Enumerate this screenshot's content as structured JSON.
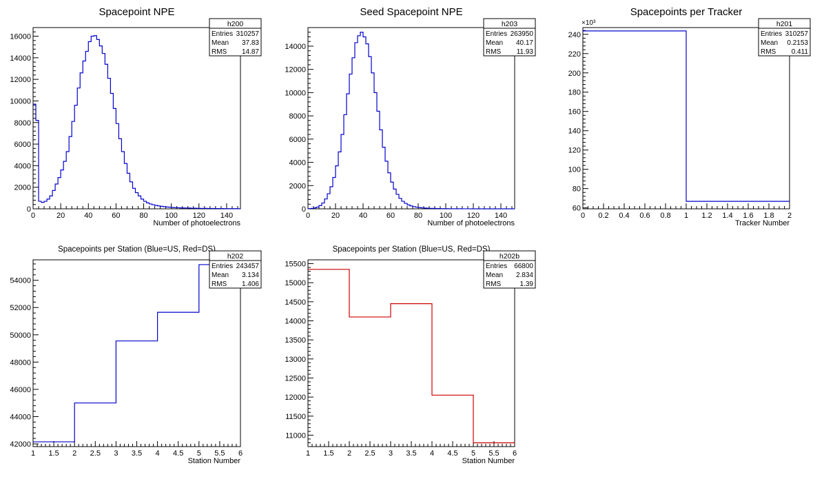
{
  "chart_data": [
    {
      "id": "h200",
      "type": "histogram",
      "title": "Spacepoint NPE",
      "xlabel": "Number of photoelectrons",
      "ylabel": "",
      "xlim": [
        0,
        150
      ],
      "ylim": [
        0,
        16800
      ],
      "x_ticks": [
        0,
        20,
        40,
        60,
        80,
        100,
        120,
        140
      ],
      "y_ticks": [
        0,
        2000,
        4000,
        6000,
        8000,
        10000,
        12000,
        14000,
        16000
      ],
      "exponent_label": "",
      "line_color": "#0000cc",
      "stats": {
        "name": "h200",
        "rows": [
          {
            "label": "Entries",
            "value": "310257"
          },
          {
            "label": "Mean",
            "value": "37.83"
          },
          {
            "label": "RMS",
            "value": "14.87"
          }
        ]
      },
      "bin_width": 2,
      "values": [
        9700,
        8200,
        700,
        600,
        700,
        900,
        1200,
        1700,
        2300,
        2900,
        3600,
        4400,
        5300,
        6700,
        8100,
        9600,
        11200,
        12600,
        13700,
        14600,
        15500,
        16000,
        16050,
        15700,
        15100,
        14400,
        13400,
        12100,
        10700,
        9300,
        7900,
        6500,
        5300,
        4200,
        3300,
        2500,
        1900,
        1500,
        1200,
        900,
        700,
        550,
        450,
        380,
        320,
        270,
        230,
        200,
        170,
        150,
        130,
        110,
        100,
        90,
        80,
        75,
        70,
        60,
        55,
        50,
        45,
        40,
        38,
        35,
        32,
        30,
        28,
        25,
        22,
        20,
        18,
        16,
        15,
        14,
        12
      ]
    },
    {
      "id": "h203",
      "type": "histogram",
      "title": "Seed Spacepoint NPE",
      "xlabel": "Number of photoelectrons",
      "ylabel": "",
      "xlim": [
        0,
        150
      ],
      "ylim": [
        0,
        15600
      ],
      "x_ticks": [
        0,
        20,
        40,
        60,
        80,
        100,
        120,
        140
      ],
      "y_ticks": [
        0,
        2000,
        4000,
        6000,
        8000,
        10000,
        12000,
        14000
      ],
      "exponent_label": "",
      "line_color": "#0000cc",
      "stats": {
        "name": "h203",
        "rows": [
          {
            "label": "Entries",
            "value": "263950"
          },
          {
            "label": "Mean",
            "value": "40.17"
          },
          {
            "label": "RMS",
            "value": "11.93"
          }
        ]
      },
      "bin_width": 2,
      "values": [
        20,
        40,
        80,
        150,
        280,
        500,
        850,
        1300,
        1900,
        2700,
        3700,
        4900,
        6400,
        8100,
        9900,
        11600,
        13000,
        14300,
        14900,
        15200,
        14800,
        14200,
        13100,
        11700,
        10000,
        8400,
        6800,
        5300,
        4100,
        3100,
        2300,
        1700,
        1250,
        900,
        650,
        470,
        340,
        250,
        190,
        145,
        110,
        85,
        65,
        50,
        40,
        35,
        30,
        25,
        20,
        18,
        15,
        12,
        10,
        8,
        7,
        6,
        5,
        4,
        3,
        2,
        2,
        2,
        1,
        1,
        1,
        1,
        1,
        1,
        1,
        1,
        1,
        1,
        1,
        1,
        1
      ]
    },
    {
      "id": "h201",
      "type": "histogram",
      "title": "Spacepoints per Tracker",
      "xlabel": "Tracker Number",
      "ylabel": "",
      "xlim": [
        0,
        2
      ],
      "ylim": [
        59,
        247
      ],
      "x_ticks": [
        0,
        0.2,
        0.4,
        0.6,
        0.8,
        1,
        1.2,
        1.4,
        1.6,
        1.8,
        2
      ],
      "y_ticks": [
        60,
        80,
        100,
        120,
        140,
        160,
        180,
        200,
        220,
        240
      ],
      "exponent_label": "×10³",
      "line_color": "#0000cc",
      "stats": {
        "name": "h201",
        "rows": [
          {
            "label": "Entries",
            "value": "310257"
          },
          {
            "label": "Mean",
            "value": "0.2153"
          },
          {
            "label": "RMS",
            "value": "0.411"
          }
        ]
      },
      "bin_width": 1,
      "values": [
        243.5,
        66.8
      ]
    },
    {
      "id": "h202",
      "type": "histogram",
      "title": "Spacepoints per Station (Blue=US, Red=DS)",
      "xlabel": "Station Number",
      "ylabel": "",
      "xlim": [
        1,
        6
      ],
      "ylim": [
        41800,
        55500
      ],
      "x_ticks": [
        1,
        1.5,
        2,
        2.5,
        3,
        3.5,
        4,
        4.5,
        5,
        5.5,
        6
      ],
      "y_ticks": [
        42000,
        44000,
        46000,
        48000,
        50000,
        52000,
        54000
      ],
      "exponent_label": "",
      "line_color": "#0000cc",
      "stats": {
        "name": "h202",
        "rows": [
          {
            "label": "Entries",
            "value": "243457"
          },
          {
            "label": "Mean",
            "value": "3.134"
          },
          {
            "label": "RMS",
            "value": "1.406"
          }
        ]
      },
      "bin_width": 1,
      "values": [
        42150,
        45000,
        49550,
        51650,
        55150
      ]
    },
    {
      "id": "h202b",
      "type": "histogram",
      "title": "Spacepoints per Station (Blue=US, Red=DS)",
      "xlabel": "Station Number",
      "ylabel": "",
      "xlim": [
        1,
        6
      ],
      "ylim": [
        10700,
        15600
      ],
      "x_ticks": [
        1,
        1.5,
        2,
        2.5,
        3,
        3.5,
        4,
        4.5,
        5,
        5.5,
        6
      ],
      "y_ticks": [
        11000,
        11500,
        12000,
        12500,
        13000,
        13500,
        14000,
        14500,
        15000,
        15500
      ],
      "exponent_label": "",
      "line_color": "#cc0000",
      "stats": {
        "name": "h202b",
        "rows": [
          {
            "label": "Entries",
            "value": "66800"
          },
          {
            "label": "Mean",
            "value": "2.834"
          },
          {
            "label": "RMS",
            "value": "1.39"
          }
        ]
      },
      "bin_width": 1,
      "values": [
        15350,
        14100,
        14450,
        12050,
        10800
      ]
    }
  ]
}
